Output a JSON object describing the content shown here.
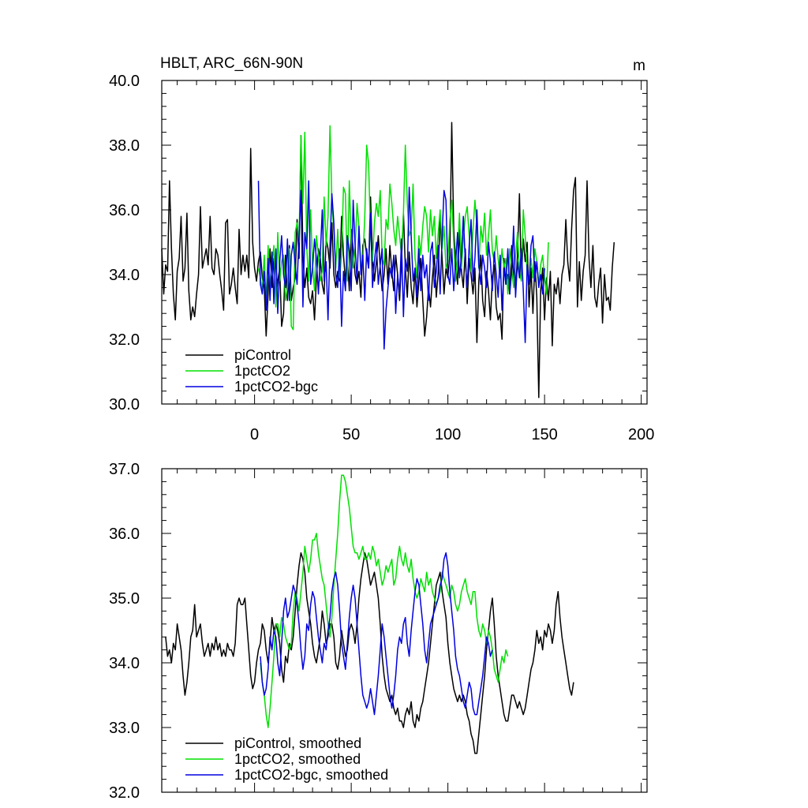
{
  "chart_data": [
    {
      "type": "line",
      "title": "HBLT, ARC_66N-90N",
      "units": "m",
      "xlim": [
        -48,
        203
      ],
      "ylim": [
        30,
        40
      ],
      "yticks": [
        "30.0",
        "32.0",
        "34.0",
        "36.0",
        "38.0",
        "40.0"
      ],
      "xticks": [
        "0",
        "50",
        "100",
        "150",
        "200"
      ],
      "legend_position": "bottom-left",
      "series": [
        {
          "name": "piControl",
          "color": "#000000",
          "x_start": -48,
          "values": [
            34.8,
            33.4,
            34.3,
            34.1,
            36.9,
            34.8,
            33.4,
            32.6,
            34.1,
            34.5,
            35.8,
            33.8,
            34.2,
            35.9,
            33.5,
            32.6,
            33.0,
            32.7,
            33.4,
            34.0,
            36.1,
            34.2,
            34.5,
            34.8,
            34.3,
            35.8,
            34.2,
            34.0,
            34.8,
            34.6,
            34.0,
            33.5,
            32.9,
            35.6,
            35.7,
            33.4,
            33.7,
            34.2,
            33.6,
            33.1,
            35.4,
            34.0,
            34.6,
            34.1,
            34.6,
            33.9,
            37.9,
            35.0,
            34.2,
            33.8,
            34.4,
            34.7,
            33.9,
            33.6,
            32.1,
            33.4,
            34.8,
            33.6,
            34.5,
            33.3,
            33.8,
            34.2,
            32.4,
            32.8,
            34.6,
            33.2,
            34.9,
            33.2,
            33.6,
            33.9,
            35.7,
            34.5,
            38.3,
            34.6,
            33.6,
            34.2,
            33.3,
            33.1,
            33.5,
            32.6,
            33.9,
            34.8,
            34.5,
            33.7,
            33.4,
            35.1,
            34.8,
            34.2,
            35.6,
            34.0,
            33.6,
            34.1,
            33.8,
            35.8,
            34.6,
            33.8,
            34.5,
            33.5,
            35.4,
            34.8,
            34.0,
            33.7,
            34.1,
            33.3,
            34.9,
            35.1,
            34.6,
            34.2,
            36.4,
            34.5,
            33.8,
            34.4,
            35.2,
            34.2,
            33.5,
            34.0,
            34.8,
            33.7,
            34.9,
            34.1,
            33.5,
            34.6,
            34.0,
            33.2,
            34.4,
            35.9,
            34.2,
            33.3,
            34.7,
            33.6,
            33.1,
            34.2,
            33.0,
            33.8,
            34.5,
            33.2,
            32.1,
            32.7,
            33.6,
            33.0,
            33.9,
            34.6,
            33.3,
            34.1,
            35.8,
            34.5,
            33.4,
            34.2,
            33.9,
            34.6,
            38.7,
            35.4,
            34.4,
            33.7,
            35.4,
            34.1,
            33.6,
            34.8,
            33.1,
            34.5,
            34.0,
            33.4,
            34.2,
            31.9,
            33.8,
            34.6,
            33.2,
            32.7,
            34.1,
            33.5,
            32.6,
            33.9,
            34.3,
            33.0,
            32.6,
            32.8,
            32.0,
            34.5,
            33.7,
            34.0,
            33.4,
            34.9,
            34.0,
            33.5,
            34.6,
            36.5,
            33.9,
            35.1,
            34.4,
            35.0,
            33.0,
            34.2,
            32.8,
            34.4,
            33.3,
            30.2,
            33.5,
            34.2,
            32.6,
            33.9,
            33.2,
            34.1,
            31.8,
            33.7,
            33.4,
            33.9,
            33.1,
            34.0,
            34.3,
            35.7,
            34.4,
            33.8,
            35.4,
            36.6,
            37.0,
            33.0,
            34.4,
            33.2,
            34.1,
            34.6,
            36.9,
            34.5,
            33.6,
            34.9,
            33.3,
            33.0,
            33.7,
            34.2,
            32.5,
            34.0,
            33.2,
            33.3,
            32.9,
            34.2,
            35.0
          ]
        },
        {
          "name": "1pctCO2",
          "color": "#00e000",
          "x_start": 2,
          "values": [
            34.2,
            33.9,
            33.5,
            34.6,
            33.1,
            34.9,
            33.6,
            34.3,
            34.9,
            33.0,
            35.3,
            33.8,
            34.4,
            34.6,
            33.2,
            33.6,
            34.8,
            32.4,
            32.3,
            35.3,
            35.6,
            35.0,
            38.3,
            36.2,
            38.4,
            34.8,
            33.8,
            36.0,
            34.3,
            33.5,
            35.2,
            34.6,
            33.8,
            34.1,
            36.4,
            34.9,
            35.8,
            38.6,
            36.3,
            35.3,
            34.2,
            35.4,
            33.9,
            34.6,
            36.7,
            36.5,
            33.8,
            36.9,
            35.0,
            34.2,
            34.8,
            36.2,
            35.5,
            34.2,
            34.4,
            35.8,
            38.0,
            37.4,
            35.2,
            34.4,
            35.6,
            36.2,
            35.8,
            36.6,
            34.5,
            34.3,
            35.7,
            35.4,
            36.8,
            36.2,
            35.4,
            34.9,
            35.8,
            35.2,
            34.6,
            35.9,
            38.0,
            36.2,
            35.2,
            35.4,
            36.8,
            34.5,
            33.9,
            35.2,
            34.6,
            35.5,
            36.1,
            35.8,
            34.7,
            36.0,
            35.2,
            35.8,
            34.5,
            35.3,
            36.0,
            34.8,
            35.5,
            34.2,
            34.4,
            35.7,
            36.3,
            35.0,
            33.8,
            34.6,
            35.9,
            34.2,
            35.1,
            35.8,
            36.1,
            35.2,
            34.1,
            35.4,
            36.3,
            35.5,
            34.2,
            35.5,
            35.0,
            35.9,
            34.6,
            35.2,
            36.0,
            34.7,
            34.4,
            35.2,
            34.5,
            33.9,
            34.8,
            34.2,
            34.5,
            33.4,
            34.8,
            34.2,
            33.6,
            34.6,
            35.3,
            34.1,
            33.8,
            36.0,
            35.2,
            34.0,
            33.8,
            34.5,
            33.9,
            34.8,
            34.4,
            33.7,
            34.3,
            34.6,
            33.9,
            33.4,
            35.0
          ]
        },
        {
          "name": "1pctCO2-bgc",
          "color": "#0000e0",
          "x_start": 2,
          "values": [
            36.9,
            33.7,
            33.4,
            34.1,
            32.9,
            34.5,
            33.2,
            34.7,
            33.1,
            34.8,
            32.8,
            34.4,
            35.2,
            34.0,
            33.6,
            35.1,
            33.2,
            34.6,
            35.0,
            34.3,
            33.7,
            35.2,
            36.6,
            33.0,
            35.3,
            34.8,
            36.9,
            33.7,
            34.2,
            35.1,
            34.5,
            33.4,
            34.6,
            36.0,
            33.8,
            34.4,
            32.6,
            34.9,
            36.5,
            35.6,
            34.0,
            33.6,
            34.8,
            32.4,
            34.1,
            33.5,
            35.2,
            34.7,
            33.5,
            36.3,
            34.9,
            33.8,
            35.5,
            34.0,
            34.6,
            33.2,
            34.8,
            34.2,
            35.9,
            33.6,
            34.4,
            35.0,
            33.7,
            34.3,
            34.8,
            31.7,
            32.9,
            33.6,
            34.2,
            33.9,
            34.6,
            32.8,
            34.0,
            33.4,
            35.1,
            32.7,
            34.5,
            34.1,
            36.7,
            35.2,
            33.8,
            34.2,
            33.3,
            34.8,
            33.5,
            34.6,
            33.9,
            34.3,
            33.2,
            34.7,
            35.0,
            33.6,
            34.1,
            34.9,
            33.4,
            35.2,
            36.6,
            36.3,
            34.0,
            33.7,
            34.8,
            33.5,
            34.4,
            35.3,
            33.9,
            34.6,
            35.8,
            34.4,
            33.6,
            34.9,
            35.7,
            33.8,
            34.5,
            36.0,
            34.3,
            33.7,
            34.6,
            34.2,
            33.6,
            35.0,
            34.4,
            33.5,
            34.7,
            34.0,
            33.3,
            34.6,
            32.9,
            34.2,
            33.7,
            34.8,
            33.4,
            34.1,
            35.5,
            33.3,
            34.4,
            33.9,
            34.8,
            33.5,
            31.9,
            34.3,
            33.7,
            34.9,
            35.2,
            33.8,
            34.4,
            33.6,
            34.0,
            33.4,
            34.2
          ]
        }
      ]
    },
    {
      "type": "line",
      "title": "",
      "xlim": [
        -48,
        203
      ],
      "ylim": [
        32,
        37
      ],
      "yticks": [
        "32.0",
        "33.0",
        "34.0",
        "35.0",
        "36.0",
        "37.0"
      ],
      "legend_position": "bottom-left",
      "series": [
        {
          "name": "piControl, smoothed",
          "color": "#000000",
          "x_start": -46,
          "values": [
            34.4,
            34.1,
            34.2,
            34.0,
            34.3,
            34.2,
            34.6,
            34.4,
            34.2,
            33.8,
            33.5,
            33.7,
            34.0,
            34.4,
            34.5,
            34.9,
            34.4,
            34.5,
            34.6,
            34.3,
            34.1,
            34.2,
            34.3,
            34.1,
            34.3,
            34.2,
            34.4,
            34.2,
            34.3,
            34.1,
            34.2,
            34.1,
            34.3,
            34.2,
            34.2,
            34.1,
            34.3,
            34.9,
            35.0,
            34.9,
            34.9,
            35.0,
            34.6,
            34.2,
            33.8,
            33.6,
            33.7,
            34.0,
            34.2,
            34.3,
            34.6,
            34.5,
            34.2,
            34.0,
            34.3,
            34.7,
            34.5,
            34.6,
            34.5,
            34.3,
            33.9,
            33.7,
            34.1,
            34.0,
            34.3,
            34.2,
            34.4,
            34.8,
            35.2,
            35.5,
            35.7,
            35.6,
            35.4,
            35.0,
            34.8,
            34.6,
            34.3,
            34.1,
            34.0,
            34.2,
            34.4,
            34.8,
            34.6,
            34.3,
            34.4,
            34.6,
            34.6,
            34.4,
            34.0,
            33.9,
            34.1,
            34.5,
            34.3,
            34.1,
            34.2,
            34.5,
            34.6,
            34.5,
            34.3,
            34.6,
            35.0,
            35.3,
            35.5,
            35.7,
            35.6,
            35.4,
            35.2,
            35.3,
            35.4,
            35.2,
            35.0,
            34.6,
            34.1,
            33.8,
            33.6,
            33.5,
            33.4,
            33.5,
            33.3,
            33.2,
            33.3,
            33.1,
            33.1,
            33.0,
            33.2,
            33.3,
            33.2,
            33.4,
            33.1,
            33.0,
            33.2,
            33.1,
            33.3,
            33.4,
            33.6,
            33.8,
            34.0,
            34.3,
            34.6,
            34.9,
            35.2,
            35.3,
            35.4,
            35.1,
            34.9,
            34.7,
            34.3,
            34.0,
            33.8,
            33.6,
            33.5,
            33.4,
            33.5,
            33.4,
            33.5,
            33.4,
            33.2,
            33.1,
            32.9,
            32.8,
            32.6,
            32.6,
            32.9,
            33.2,
            33.5,
            33.8,
            34.2,
            34.5,
            34.8,
            35.0,
            34.6,
            34.1,
            33.8,
            33.6,
            33.4,
            33.2,
            33.1,
            33.1,
            33.3,
            33.5,
            33.5,
            33.4,
            33.3,
            33.4,
            33.3,
            33.2,
            33.3,
            33.5,
            33.7,
            33.9,
            34.0,
            34.2,
            34.5,
            34.3,
            34.4,
            34.2,
            34.5,
            34.4,
            34.6,
            34.5,
            34.3,
            34.5,
            34.9,
            35.1,
            34.7,
            34.4,
            34.2,
            34.0,
            33.8,
            33.6,
            33.5,
            33.7
          ]
        },
        {
          "name": "1pctCO2, smoothed",
          "color": "#00e000",
          "x_start": 3,
          "values": [
            34.0,
            33.7,
            33.5,
            33.2,
            33.0,
            33.3,
            33.7,
            34.1,
            34.6,
            34.6,
            34.4,
            34.7,
            34.6,
            34.4,
            34.3,
            34.2,
            34.3,
            34.8,
            35.1,
            35.0,
            34.8,
            35.1,
            35.4,
            35.8,
            35.6,
            35.4,
            35.6,
            35.9,
            35.9,
            36.0,
            35.7,
            35.5,
            35.3,
            35.2,
            34.9,
            34.6,
            34.4,
            34.7,
            35.2,
            35.6,
            36.0,
            36.5,
            36.9,
            36.9,
            36.8,
            36.6,
            36.4,
            36.1,
            35.8,
            35.7,
            35.7,
            35.6,
            35.7,
            35.8,
            35.6,
            35.6,
            35.7,
            35.6,
            35.8,
            35.7,
            35.5,
            35.6,
            35.4,
            35.2,
            35.3,
            35.5,
            35.4,
            35.5,
            35.6,
            35.2,
            35.3,
            35.6,
            35.8,
            35.6,
            35.5,
            35.7,
            35.5,
            35.4,
            35.6,
            35.3,
            35.1,
            35.0,
            35.1,
            35.3,
            35.2,
            35.1,
            35.4,
            35.2,
            35.3,
            35.1,
            35.0,
            34.9,
            35.0,
            35.1,
            35.4,
            35.3,
            35.2,
            35.1,
            35.0,
            35.2,
            35.1,
            34.9,
            34.8,
            34.9,
            35.1,
            35.2,
            35.3,
            35.1,
            35.0,
            34.9,
            35.1,
            35.1,
            34.7,
            34.5,
            34.4,
            34.6,
            34.5,
            34.3,
            34.5,
            34.4,
            34.2,
            33.9,
            33.8,
            33.7,
            33.9,
            34.1,
            34.0,
            34.2,
            34.1
          ]
        },
        {
          "name": "1pctCO2-bgc, smoothed",
          "color": "#0000e0",
          "x_start": 3,
          "values": [
            34.1,
            33.7,
            33.5,
            33.6,
            33.9,
            34.4,
            34.2,
            34.5,
            34.4,
            34.0,
            33.8,
            34.3,
            34.8,
            35.0,
            34.7,
            34.8,
            35.0,
            35.2,
            35.1,
            34.9,
            34.6,
            34.2,
            33.9,
            34.1,
            34.6,
            34.5,
            34.9,
            35.1,
            35.0,
            34.7,
            34.4,
            34.2,
            34.0,
            34.3,
            34.2,
            34.5,
            34.7,
            35.1,
            35.3,
            35.4,
            35.2,
            34.8,
            34.3,
            34.1,
            33.9,
            34.3,
            34.7,
            35.0,
            35.2,
            35.0,
            34.6,
            34.2,
            33.8,
            33.5,
            33.4,
            33.3,
            33.4,
            33.6,
            33.4,
            33.2,
            33.5,
            33.8,
            34.2,
            34.6,
            34.4,
            34.1,
            33.8,
            33.5,
            33.3,
            33.5,
            33.8,
            34.2,
            34.4,
            34.3,
            34.6,
            34.7,
            34.3,
            34.1,
            34.5,
            34.8,
            35.1,
            35.3,
            35.2,
            34.9,
            34.6,
            34.2,
            34.0,
            34.3,
            34.6,
            34.7,
            34.8,
            34.9,
            35.0,
            35.2,
            35.3,
            35.6,
            35.7,
            35.5,
            35.1,
            34.8,
            34.5,
            34.1,
            33.9,
            33.8,
            33.6,
            33.4,
            33.3,
            33.5,
            33.7,
            33.6,
            33.3,
            33.2,
            33.2,
            33.4,
            33.6,
            33.8,
            34.1,
            34.4,
            34.3,
            34.1,
            34.2
          ]
        }
      ]
    }
  ]
}
